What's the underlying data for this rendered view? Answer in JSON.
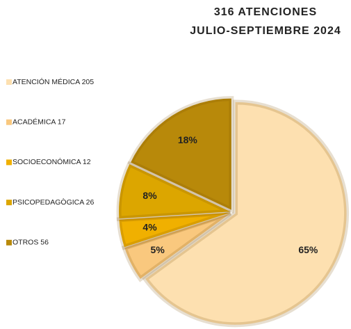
{
  "chart_data": {
    "type": "pie",
    "title": "316 ATENCIONES",
    "subtitle": "JULIO-SEPTIEMBRE 2024",
    "categories": [
      "ATENCIÓN MÉDICA 205",
      "ACADÉMICA  17",
      "SOCIOECONÓMICA  12",
      "PSICOPEDAGÒGICA 26",
      "OTROS  56"
    ],
    "values": [
      65,
      5,
      4,
      8,
      18
    ],
    "value_labels": [
      "65%",
      "5%",
      "4%",
      "8%",
      "18%"
    ],
    "colors": [
      "#fde0b0",
      "#f9c87e",
      "#f0b000",
      "#dca600",
      "#b8890a"
    ],
    "legend": "left"
  }
}
